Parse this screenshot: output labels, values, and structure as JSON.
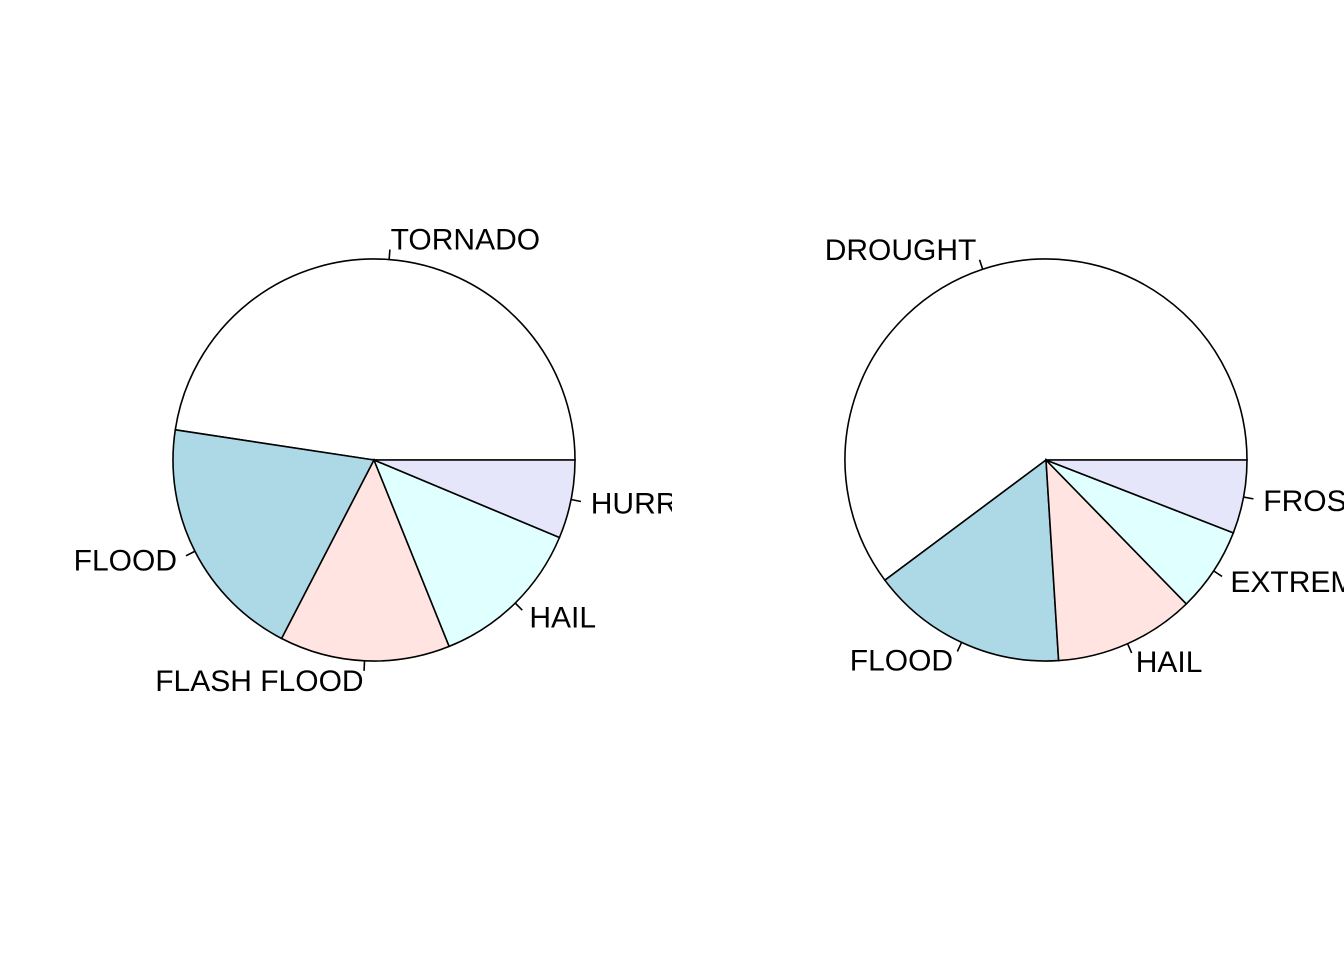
{
  "chart_data": [
    {
      "type": "pie",
      "title": "",
      "start": "3 o'clock, counter-clockwise",
      "slices": [
        {
          "label": "TORNADO",
          "value": 47.6,
          "color": "#ffffff"
        },
        {
          "label": "FLOOD",
          "value": 19.8,
          "color": "#add8e6"
        },
        {
          "label": "FLASH FLOOD",
          "value": 13.7,
          "color": "#ffe4e1"
        },
        {
          "label": "HAIL",
          "value": 12.6,
          "color": "#e0ffff"
        },
        {
          "label": "HURRICANE",
          "value": 6.3,
          "color": "#e6e6fa"
        }
      ]
    },
    {
      "type": "pie",
      "title": "",
      "start": "3 o'clock, counter-clockwise",
      "slices": [
        {
          "label": "DROUGHT",
          "value": 60.2,
          "color": "#ffffff"
        },
        {
          "label": "FLOOD",
          "value": 15.8,
          "color": "#add8e6"
        },
        {
          "label": "HAIL",
          "value": 11.3,
          "color": "#ffe4e1"
        },
        {
          "label": "EXTREME COLD",
          "value": 6.8,
          "color": "#e0ffff"
        },
        {
          "label": "FROST/FREEZE",
          "value": 5.9,
          "color": "#e6e6fa"
        }
      ]
    }
  ]
}
